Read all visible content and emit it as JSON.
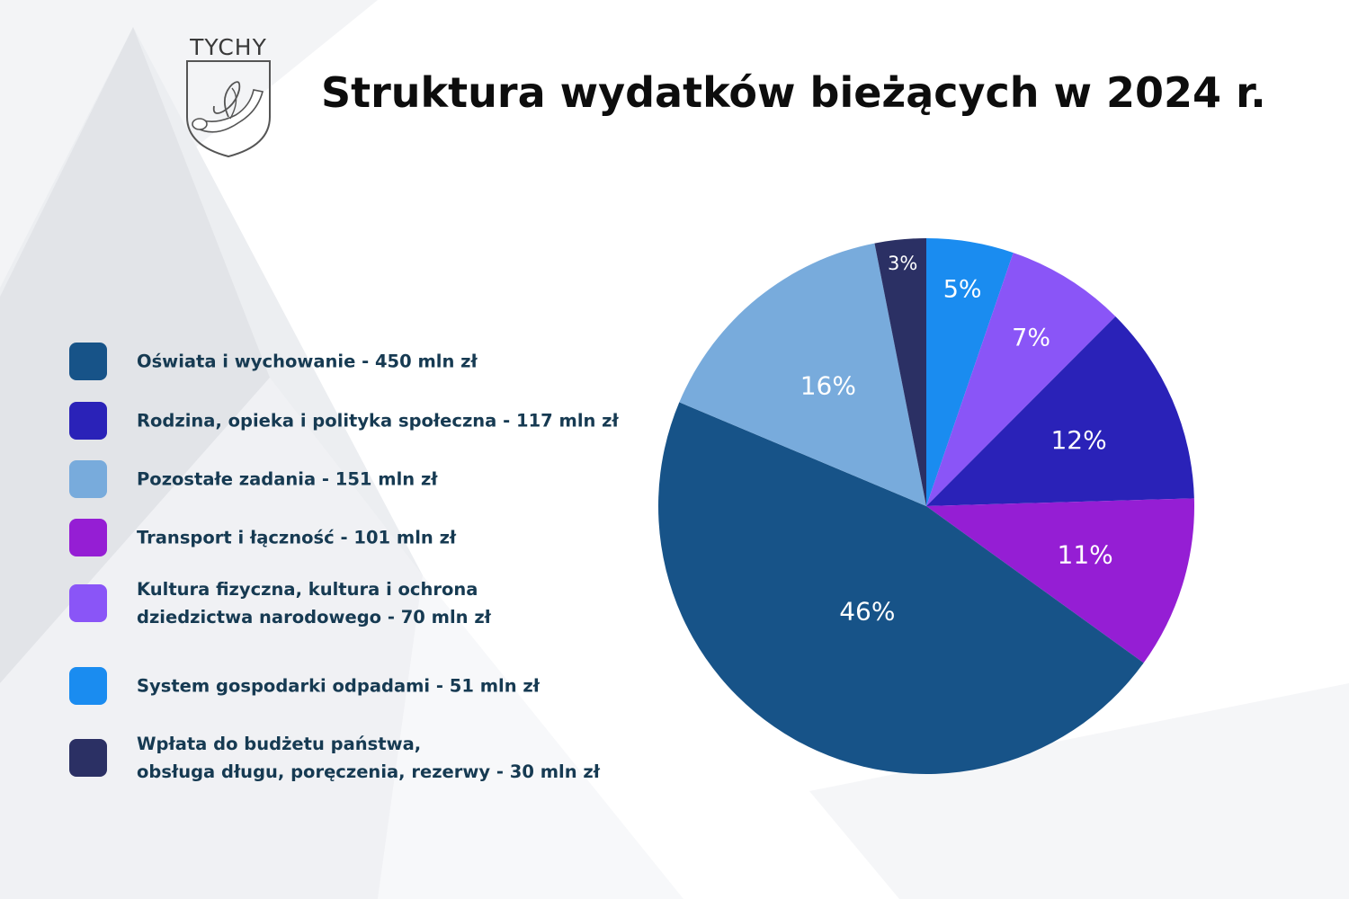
{
  "logo": {
    "text": "TYCHY"
  },
  "chart_data": {
    "type": "pie",
    "title": "Struktura wydatków bieżących w 2024 r.",
    "legend_position": "left",
    "slices": [
      {
        "label": "System gospodarki odpadami - 51 mln zł",
        "value": 51,
        "percent_label": "5%",
        "color": "#1a8cf0"
      },
      {
        "label": "Kultura fizyczna, kultura i ochrona\ndziedzictwa narodowego - 70 mln zł",
        "value": 70,
        "percent_label": "7%",
        "color": "#8a55f7"
      },
      {
        "label": "Rodzina, opieka i polityka społeczna - 117 mln zł",
        "value": 117,
        "percent_label": "12%",
        "color": "#2a22b8"
      },
      {
        "label": "Transport i łączność - 101 mln zł",
        "value": 101,
        "percent_label": "11%",
        "color": "#951ed4"
      },
      {
        "label": "Oświata i wychowanie - 450 mln zł",
        "value": 450,
        "percent_label": "46%",
        "color": "#175388"
      },
      {
        "label": "Pozostałe zadania - 151 mln zł",
        "value": 151,
        "percent_label": "16%",
        "color": "#78abdc"
      },
      {
        "label": "Wpłata do budżetu państwa,\nobsługa długu, poręczenia, rezerwy - 30 mln zł",
        "value": 30,
        "percent_label": "3%",
        "color": "#2b3064"
      }
    ],
    "legend_order": [
      4,
      2,
      5,
      3,
      1,
      0,
      6
    ]
  }
}
